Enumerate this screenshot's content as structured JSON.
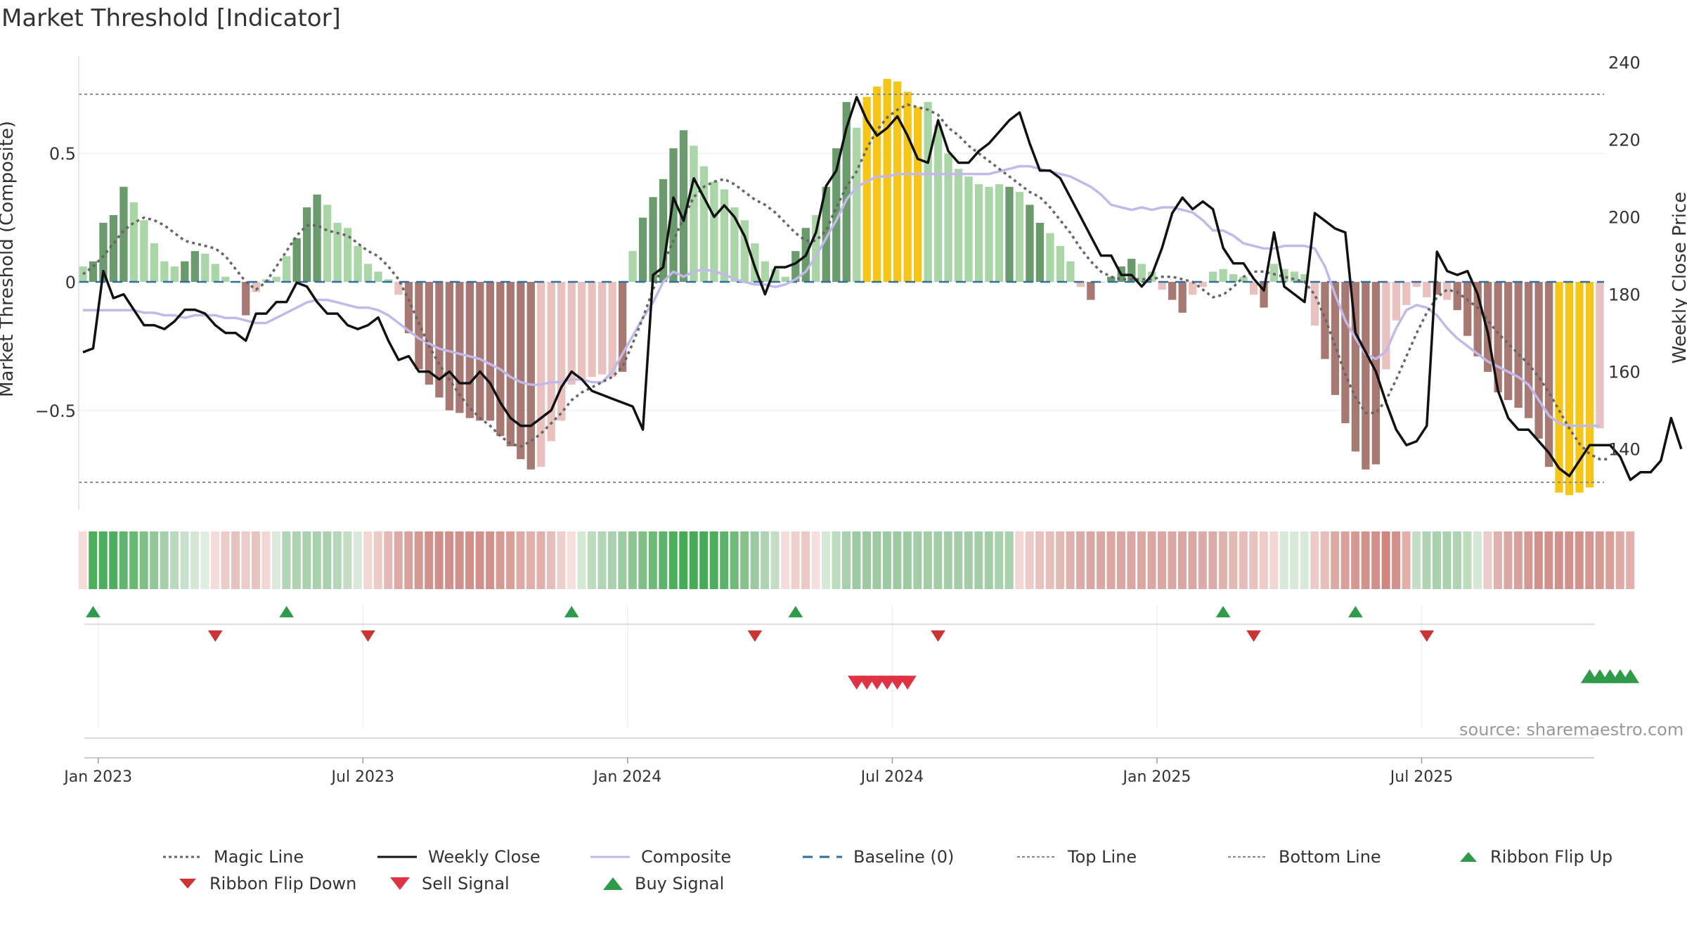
{
  "title": "Market Threshold [Indicator]",
  "source": "source: sharemaestro.com",
  "chart_data": {
    "type": "bar",
    "left_axis": {
      "label": "Market Threshold (Composite)",
      "ticks": [
        0.5,
        0,
        -0.5
      ],
      "tick_labels": [
        "0.5",
        "0",
        "−0.5"
      ],
      "range": [
        -0.9,
        0.9
      ]
    },
    "right_axis": {
      "label": "Weekly Close Price",
      "ticks": [
        240,
        220,
        200,
        180,
        160,
        140
      ],
      "tick_labels": [
        "240",
        "220",
        "200",
        "180",
        "160",
        "140"
      ],
      "range": [
        123.4,
        243.0
      ]
    },
    "x_ticks": [
      "Jan 2023",
      "Jul 2023",
      "Jan 2024",
      "Jul 2024",
      "Jan 2025",
      "Jul 2025"
    ],
    "x_tick_index": [
      1.5,
      27.5,
      53.5,
      79.5,
      105.5,
      131.5
    ],
    "top_line": 0.73,
    "bottom_line": -0.78,
    "composite_bars": [
      0.06,
      0.08,
      0.23,
      0.26,
      0.37,
      0.31,
      0.24,
      0.15,
      0.08,
      0.06,
      0.08,
      0.12,
      0.11,
      0.07,
      0.02,
      0,
      -0.13,
      -0.04,
      0.01,
      0.02,
      0.1,
      0.17,
      0.29,
      0.34,
      0.3,
      0.23,
      0.21,
      0.14,
      0.07,
      0.04,
      0.01,
      -0.05,
      -0.2,
      -0.34,
      -0.4,
      -0.45,
      -0.5,
      -0.51,
      -0.53,
      -0.54,
      -0.54,
      -0.6,
      -0.64,
      -0.69,
      -0.73,
      -0.72,
      -0.62,
      -0.54,
      -0.4,
      -0.38,
      -0.37,
      -0.36,
      -0.37,
      -0.35,
      0.12,
      0.25,
      0.33,
      0.4,
      0.52,
      0.59,
      0.53,
      0.45,
      0.39,
      0.36,
      0.29,
      0.24,
      0.15,
      0.08,
      0.05,
      0.02,
      0.12,
      0.21,
      0.26,
      0.37,
      0.52,
      0.7,
      0.6,
      0.72,
      0.76,
      0.79,
      0.78,
      0.74,
      0.68,
      0.7,
      0.61,
      0.5,
      0.44,
      0.41,
      0.38,
      0.37,
      0.38,
      0.37,
      0.35,
      0.3,
      0.23,
      0.19,
      0.14,
      0.08,
      -0.02,
      -0.07,
      0,
      0.02,
      0.06,
      0.09,
      0.07,
      0.04,
      -0.03,
      -0.07,
      -0.12,
      -0.05,
      -0.02,
      0.04,
      0.05,
      0.03,
      0.02,
      -0.05,
      -0.1,
      0.07,
      0.05,
      0.04,
      0.03,
      -0.17,
      -0.3,
      -0.44,
      -0.55,
      -0.66,
      -0.73,
      -0.71,
      -0.34,
      -0.15,
      -0.09,
      -0.02,
      -0.06,
      -0.05,
      -0.07,
      -0.11,
      -0.21,
      -0.29,
      -0.35,
      -0.43,
      -0.46,
      -0.49,
      -0.53,
      -0.61,
      -0.72,
      -0.82,
      -0.83,
      -0.82,
      -0.8,
      -0.57
    ],
    "bar_colors": [
      "#a9d5a7",
      "#6a9b6c",
      "#6a9b6c",
      "#6a9b6c",
      "#6a9b6c",
      "#a9d5a7",
      "#a9d5a7",
      "#a9d5a7",
      "#a9d5a7",
      "#a9d5a7",
      "#6a9b6c",
      "#6a9b6c",
      "#a9d5a7",
      "#a9d5a7",
      "#a9d5a7",
      "#e9c2bf",
      "#a87873",
      "#e9c2bf",
      "#a9d5a7",
      "#a9d5a7",
      "#a9d5a7",
      "#6a9b6c",
      "#6a9b6c",
      "#6a9b6c",
      "#a9d5a7",
      "#a9d5a7",
      "#a9d5a7",
      "#a9d5a7",
      "#a9d5a7",
      "#a9d5a7",
      "#a9d5a7",
      "#e9c2bf",
      "#a87873",
      "#a87873",
      "#a87873",
      "#a87873",
      "#a87873",
      "#a87873",
      "#a87873",
      "#a87873",
      "#a87873",
      "#a87873",
      "#a87873",
      "#a87873",
      "#a87873",
      "#e9c2bf",
      "#e9c2bf",
      "#e9c2bf",
      "#e9c2bf",
      "#e9c2bf",
      "#e9c2bf",
      "#e9c2bf",
      "#e9c2bf",
      "#a87873",
      "#a9d5a7",
      "#6a9b6c",
      "#6a9b6c",
      "#6a9b6c",
      "#6a9b6c",
      "#6a9b6c",
      "#a9d5a7",
      "#a9d5a7",
      "#a9d5a7",
      "#a9d5a7",
      "#a9d5a7",
      "#a9d5a7",
      "#a9d5a7",
      "#a9d5a7",
      "#a9d5a7",
      "#a9d5a7",
      "#6a9b6c",
      "#6a9b6c",
      "#a9d5a7",
      "#6a9b6c",
      "#6a9b6c",
      "#6a9b6c",
      "#a9d5a7",
      "#f5c518",
      "#f5c518",
      "#f5c518",
      "#f5c518",
      "#f5c518",
      "#f5c518",
      "#a9d5a7",
      "#a9d5a7",
      "#a9d5a7",
      "#a9d5a7",
      "#a9d5a7",
      "#a9d5a7",
      "#a9d5a7",
      "#a9d5a7",
      "#6a9b6c",
      "#a9d5a7",
      "#6a9b6c",
      "#6a9b6c",
      "#a9d5a7",
      "#a9d5a7",
      "#a9d5a7",
      "#e9c2bf",
      "#a87873",
      "#a9d5a7",
      "#6a9b6c",
      "#6a9b6c",
      "#6a9b6c",
      "#a9d5a7",
      "#a9d5a7",
      "#e9c2bf",
      "#a87873",
      "#a87873",
      "#e9c2bf",
      "#e9c2bf",
      "#a9d5a7",
      "#a9d5a7",
      "#a9d5a7",
      "#a9d5a7",
      "#e9c2bf",
      "#a87873",
      "#a9d5a7",
      "#a9d5a7",
      "#a9d5a7",
      "#a9d5a7",
      "#e9c2bf",
      "#a87873",
      "#a87873",
      "#a87873",
      "#a87873",
      "#a87873",
      "#a87873",
      "#e9c2bf",
      "#e9c2bf",
      "#e9c2bf",
      "#e9c2bf",
      "#e9c2bf",
      "#a87873",
      "#e9c2bf",
      "#a87873",
      "#a87873",
      "#a87873",
      "#a87873",
      "#a87873",
      "#a87873",
      "#a87873",
      "#a87873",
      "#a87873",
      "#a87873",
      "#f5c518",
      "#f5c518",
      "#f5c518",
      "#f5c518",
      "#e9c2bf"
    ],
    "weekly_close": [
      165,
      166,
      186,
      179,
      180,
      176,
      172,
      172,
      171,
      173,
      176,
      176,
      175,
      172,
      170,
      170,
      168,
      175,
      175,
      178,
      178,
      183,
      182,
      178,
      175,
      175,
      172,
      171,
      172,
      174,
      168,
      163,
      164,
      160,
      160,
      158,
      160,
      157,
      157,
      160,
      157,
      152,
      148,
      146,
      146,
      148,
      150,
      156,
      160,
      158,
      155,
      154,
      153,
      152,
      151,
      145,
      185,
      187,
      205,
      199,
      210,
      205,
      200,
      203,
      200,
      195,
      187,
      180,
      187,
      187,
      188,
      190,
      196,
      208,
      212,
      223,
      231,
      225,
      221,
      223,
      226,
      221,
      215,
      214,
      225,
      217,
      214,
      214,
      217,
      219,
      222,
      225,
      227,
      219,
      212,
      212,
      210,
      205,
      200,
      195,
      190,
      190,
      185,
      185,
      182,
      185,
      192,
      201,
      205,
      202,
      204,
      202,
      192,
      188,
      188,
      184,
      181,
      196,
      182,
      180,
      178,
      201,
      199,
      197,
      196,
      170,
      165,
      160,
      152,
      145,
      141,
      142,
      146,
      191,
      186,
      185,
      186,
      180,
      170,
      155,
      148,
      145,
      145,
      142,
      139,
      135,
      133,
      137,
      141,
      141,
      141,
      138,
      132,
      134,
      134,
      137,
      148,
      140
    ],
    "composite_line": [
      -0.11,
      -0.11,
      -0.11,
      -0.11,
      -0.11,
      -0.11,
      -0.12,
      -0.12,
      -0.13,
      -0.13,
      -0.14,
      -0.13,
      -0.13,
      -0.13,
      -0.14,
      -0.14,
      -0.15,
      -0.16,
      -0.16,
      -0.14,
      -0.12,
      -0.1,
      -0.08,
      -0.07,
      -0.07,
      -0.08,
      -0.09,
      -0.1,
      -0.1,
      -0.11,
      -0.13,
      -0.16,
      -0.19,
      -0.22,
      -0.24,
      -0.26,
      -0.27,
      -0.28,
      -0.29,
      -0.3,
      -0.32,
      -0.34,
      -0.37,
      -0.39,
      -0.4,
      -0.4,
      -0.39,
      -0.39,
      -0.38,
      -0.38,
      -0.39,
      -0.39,
      -0.35,
      -0.28,
      -0.21,
      -0.14,
      -0.08,
      0,
      0.04,
      0.02,
      0.04,
      0.05,
      0.04,
      0.03,
      0.01,
      0,
      -0.01,
      -0.01,
      -0.02,
      -0.01,
      0.01,
      0.04,
      0.1,
      0.17,
      0.24,
      0.32,
      0.37,
      0.39,
      0.41,
      0.41,
      0.42,
      0.42,
      0.42,
      0.42,
      0.42,
      0.42,
      0.42,
      0.42,
      0.42,
      0.42,
      0.43,
      0.44,
      0.45,
      0.45,
      0.44,
      0.43,
      0.42,
      0.41,
      0.39,
      0.37,
      0.34,
      0.3,
      0.29,
      0.28,
      0.29,
      0.28,
      0.29,
      0.29,
      0.28,
      0.27,
      0.24,
      0.2,
      0.2,
      0.18,
      0.15,
      0.14,
      0.13,
      0.13,
      0.14,
      0.14,
      0.14,
      0.13,
      0.06,
      -0.05,
      -0.15,
      -0.22,
      -0.28,
      -0.3,
      -0.27,
      -0.18,
      -0.11,
      -0.09,
      -0.1,
      -0.13,
      -0.18,
      -0.22,
      -0.25,
      -0.28,
      -0.31,
      -0.33,
      -0.35,
      -0.37,
      -0.4,
      -0.46,
      -0.52,
      -0.55,
      -0.56,
      -0.56,
      -0.56,
      -0.56
    ],
    "magic_line": [
      0.03,
      0.06,
      0.1,
      0.15,
      0.2,
      0.23,
      0.25,
      0.24,
      0.22,
      0.19,
      0.16,
      0.15,
      0.14,
      0.13,
      0.1,
      0.05,
      0,
      -0.03,
      0,
      0.06,
      0.12,
      0.18,
      0.22,
      0.22,
      0.2,
      0.19,
      0.18,
      0.15,
      0.12,
      0.1,
      0.06,
      0.01,
      -0.07,
      -0.16,
      -0.25,
      -0.32,
      -0.38,
      -0.44,
      -0.49,
      -0.53,
      -0.56,
      -0.6,
      -0.63,
      -0.64,
      -0.62,
      -0.59,
      -0.55,
      -0.51,
      -0.46,
      -0.43,
      -0.41,
      -0.39,
      -0.37,
      -0.33,
      -0.24,
      -0.14,
      -0.03,
      0.07,
      0.16,
      0.25,
      0.33,
      0.37,
      0.39,
      0.4,
      0.38,
      0.35,
      0.32,
      0.3,
      0.27,
      0.23,
      0.19,
      0.16,
      0.16,
      0.2,
      0.29,
      0.37,
      0.43,
      0.52,
      0.59,
      0.64,
      0.67,
      0.69,
      0.68,
      0.67,
      0.65,
      0.6,
      0.57,
      0.53,
      0.5,
      0.47,
      0.44,
      0.41,
      0.38,
      0.35,
      0.33,
      0.29,
      0.24,
      0.19,
      0.13,
      0.08,
      0.04,
      0.02,
      0.01,
      0.01,
      0.01,
      0.01,
      0.02,
      0.02,
      0.01,
      0,
      -0.03,
      -0.06,
      -0.05,
      -0.02,
      0.02,
      0.04,
      0.04,
      0.03,
      0.02,
      0.01,
      0,
      -0.05,
      -0.14,
      -0.25,
      -0.36,
      -0.45,
      -0.51,
      -0.51,
      -0.46,
      -0.38,
      -0.29,
      -0.2,
      -0.12,
      -0.06,
      -0.03,
      -0.04,
      -0.07,
      -0.1,
      -0.15,
      -0.2,
      -0.24,
      -0.28,
      -0.32,
      -0.37,
      -0.43,
      -0.5,
      -0.57,
      -0.63,
      -0.67,
      -0.69,
      -0.69
    ],
    "ribbon_colors": [
      "#f5dcda",
      "#4daf5e",
      "#4daf5e",
      "#4daf5e",
      "#5fb76d",
      "#66ba72",
      "#7ec187",
      "#92c899",
      "#a6d0ab",
      "#b9d8bc",
      "#c9e1cc",
      "#d3e7d5",
      "#dfeee0",
      "#f4dcda",
      "#ecccc9",
      "#e7c2bf",
      "#ecccc9",
      "#e8c3c0",
      "#f2d6d4",
      "#daeadb",
      "#b2d6b5",
      "#add3b0",
      "#a9d1ad",
      "#a9d1ad",
      "#a9d1ad",
      "#b4d7b7",
      "#c4dec6",
      "#d8e9d9",
      "#f2d6d4",
      "#ecccc9",
      "#e4bab6",
      "#dda9a5",
      "#d9a19c",
      "#d59892",
      "#d2918b",
      "#d08f88",
      "#d08f88",
      "#d08f88",
      "#d08f88",
      "#d08f88",
      "#d2918b",
      "#d69a94",
      "#db9f9a",
      "#dfa9a4",
      "#e2afaa",
      "#e2afaa",
      "#e7bdb9",
      "#efcfcc",
      "#f6e0de",
      "#d4e8d5",
      "#bcdcbe",
      "#b2d6b5",
      "#a9d1ad",
      "#9ccba0",
      "#8dc593",
      "#7ebf85",
      "#6fb978",
      "#5db36b",
      "#4daf5e",
      "#45ab57",
      "#45ab57",
      "#45ab57",
      "#4daf5e",
      "#5db36b",
      "#70ba79",
      "#85c28c",
      "#9bca9f",
      "#b0d4b3",
      "#c4dec6",
      "#f5dcda",
      "#f0d0cd",
      "#ecc9c6",
      "#f6e0de",
      "#d5e9d6",
      "#bcdcbe",
      "#a7d0ab",
      "#9dcaa1",
      "#9dcaa1",
      "#9dcaa1",
      "#9dcaa1",
      "#9dcaa1",
      "#9dcaa1",
      "#a3cda7",
      "#a3cda7",
      "#a3cda7",
      "#a3cda7",
      "#a3cda7",
      "#a3cda7",
      "#a3cda7",
      "#a3cda7",
      "#a9d1ad",
      "#a9d1ad",
      "#f2d6d4",
      "#eccbc8",
      "#e7c2bf",
      "#e5bdb9",
      "#e3b9b5",
      "#e0b2ae",
      "#ddaba7",
      "#dba7a3",
      "#dba7a3",
      "#dba7a3",
      "#dba7a3",
      "#dba7a3",
      "#dba7a3",
      "#dba7a3",
      "#dba7a3",
      "#dba7a3",
      "#dba7a3",
      "#dba7a3",
      "#ddaba7",
      "#ddaba7",
      "#e0b2ae",
      "#e3b9b5",
      "#e5bdb9",
      "#e7c2bf",
      "#eccbc8",
      "#f2d6d4",
      "#d8e9d9",
      "#d8e9d9",
      "#d8e9d9",
      "#ecccc9",
      "#e5bdb9",
      "#dda9a5",
      "#d9a19c",
      "#d59892",
      "#d2918b",
      "#d08f88",
      "#cf8580",
      "#d2918b",
      "#e2afaa",
      "#c4dec6",
      "#b0d4b3",
      "#a9d1ad",
      "#a9d1ad",
      "#b0d4b3",
      "#bcdcbe",
      "#d4e8d5",
      "#ecccc9",
      "#e0b2ae",
      "#dba7a3",
      "#d9a19c",
      "#d59892",
      "#d2918b",
      "#d2918b",
      "#d2918b",
      "#d2918b",
      "#d2918b",
      "#d49690",
      "#d69a94",
      "#db9f9a",
      "#dfa9a4",
      "#e2afaa"
    ],
    "ribbon_flip_up": [
      1,
      20,
      48,
      70,
      112,
      125
    ],
    "ribbon_flip_down": [
      13,
      28,
      66,
      84,
      115,
      132
    ],
    "sell_signal": [
      76,
      77,
      78,
      79,
      80,
      81
    ],
    "buy_signal": [
      148,
      149,
      150,
      151,
      152
    ]
  },
  "legend": [
    {
      "label": "Magic Line",
      "kind": "dotted",
      "color": "#666666"
    },
    {
      "label": "Weekly Close",
      "kind": "solid",
      "color": "#111111"
    },
    {
      "label": "Composite",
      "kind": "solid",
      "color": "#c3b9e8"
    },
    {
      "label": "Baseline (0)",
      "kind": "dashed",
      "color": "#2e6f9e"
    },
    {
      "label": "Top Line",
      "kind": "dotted-thin",
      "color": "#888888"
    },
    {
      "label": "Bottom Line",
      "kind": "dotted-thin",
      "color": "#888888"
    },
    {
      "label": "Ribbon Flip Up",
      "kind": "tri-up",
      "color": "#2e9a4a"
    },
    {
      "label": "Ribbon Flip Down",
      "kind": "tri-down",
      "color": "#cc3333"
    },
    {
      "label": "Sell Signal",
      "kind": "tri-down-big",
      "color": "#dd3344"
    },
    {
      "label": "Buy Signal",
      "kind": "tri-up-big",
      "color": "#2e9a4a"
    }
  ]
}
